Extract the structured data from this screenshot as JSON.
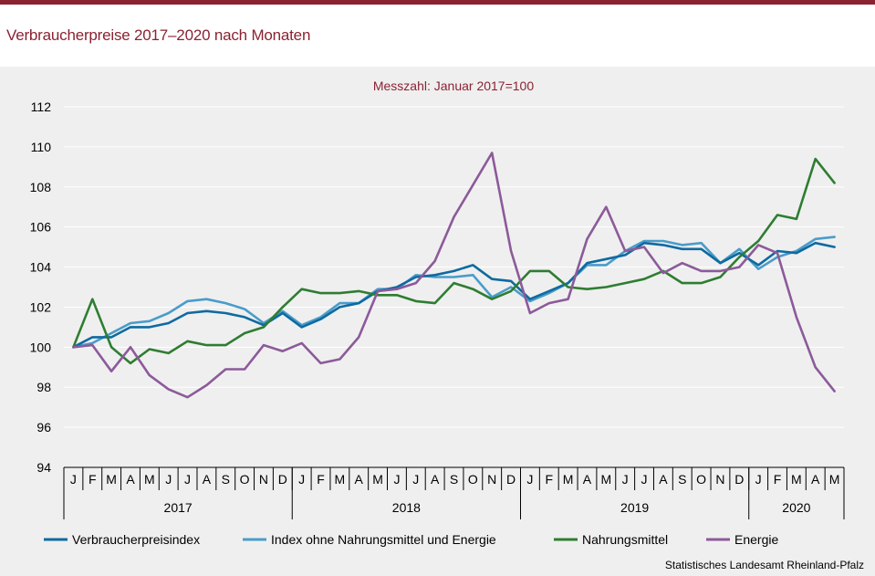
{
  "header": {
    "title": "Verbraucherpreise 2017–2020 nach Monaten"
  },
  "source": "Statistisches Landesamt Rheinland-Pfalz",
  "chart_data": {
    "type": "line",
    "subtitle": "Messzahl: Januar 2017=100",
    "ylim": [
      94,
      112
    ],
    "yticks": [
      94,
      96,
      98,
      100,
      102,
      104,
      106,
      108,
      110,
      112
    ],
    "grid": true,
    "legend_position": "bottom",
    "month_labels": [
      "J",
      "F",
      "M",
      "A",
      "M",
      "J",
      "J",
      "A",
      "S",
      "O",
      "N",
      "D",
      "J",
      "F",
      "M",
      "A",
      "M",
      "J",
      "J",
      "A",
      "S",
      "O",
      "N",
      "D",
      "J",
      "F",
      "M",
      "A",
      "M",
      "J",
      "J",
      "A",
      "S",
      "O",
      "N",
      "D",
      "J",
      "F",
      "M",
      "A",
      "M"
    ],
    "years": [
      {
        "label": "2017",
        "start": 0,
        "count": 12
      },
      {
        "label": "2018",
        "start": 12,
        "count": 12
      },
      {
        "label": "2019",
        "start": 24,
        "count": 12
      },
      {
        "label": "2020",
        "start": 36,
        "count": 5
      }
    ],
    "series": [
      {
        "name": "Verbraucherpreisindex",
        "color": "#0f6aa0",
        "values": [
          100.0,
          100.5,
          100.5,
          101.0,
          101.0,
          101.2,
          101.7,
          101.8,
          101.7,
          101.5,
          101.1,
          101.7,
          101.0,
          101.4,
          102.0,
          102.2,
          102.8,
          103.0,
          103.5,
          103.6,
          103.8,
          104.1,
          103.4,
          103.3,
          102.4,
          102.8,
          103.2,
          104.2,
          104.4,
          104.6,
          105.2,
          105.1,
          104.9,
          104.9,
          104.2,
          104.7,
          104.1,
          104.8,
          104.7,
          105.2,
          105.0
        ]
      },
      {
        "name": "Index ohne Nahrungsmittel und Energie",
        "color": "#4a9cca",
        "values": [
          100.0,
          100.2,
          100.7,
          101.2,
          101.3,
          101.7,
          102.3,
          102.4,
          102.2,
          101.9,
          101.2,
          101.8,
          101.1,
          101.5,
          102.2,
          102.2,
          102.9,
          102.9,
          103.6,
          103.5,
          103.5,
          103.6,
          102.5,
          103.0,
          102.3,
          102.7,
          103.2,
          104.1,
          104.1,
          104.8,
          105.3,
          105.3,
          105.1,
          105.2,
          104.2,
          104.9,
          103.9,
          104.5,
          104.8,
          105.4,
          105.5
        ]
      },
      {
        "name": "Nahrungsmittel",
        "color": "#2e7d32",
        "values": [
          100.0,
          102.4,
          100.0,
          99.2,
          99.9,
          99.7,
          100.3,
          100.1,
          100.1,
          100.7,
          101.0,
          102.0,
          102.9,
          102.7,
          102.7,
          102.8,
          102.6,
          102.6,
          102.3,
          102.2,
          103.2,
          102.9,
          102.4,
          102.8,
          103.8,
          103.8,
          103.0,
          102.9,
          103.0,
          103.2,
          103.4,
          103.8,
          103.2,
          103.2,
          103.5,
          104.5,
          105.3,
          106.6,
          106.4,
          109.4,
          108.2
        ]
      },
      {
        "name": "Energie",
        "color": "#8c5a9a",
        "values": [
          100.0,
          100.1,
          98.8,
          100.0,
          98.6,
          97.9,
          97.5,
          98.1,
          98.9,
          98.9,
          100.1,
          99.8,
          100.2,
          99.2,
          99.4,
          100.5,
          102.8,
          102.9,
          103.2,
          104.3,
          106.5,
          108.1,
          109.7,
          104.8,
          101.7,
          102.2,
          102.4,
          105.4,
          107.0,
          104.8,
          105.0,
          103.7,
          104.2,
          103.8,
          103.8,
          104.0,
          105.1,
          104.7,
          101.5,
          99.0,
          97.8
        ]
      }
    ]
  }
}
